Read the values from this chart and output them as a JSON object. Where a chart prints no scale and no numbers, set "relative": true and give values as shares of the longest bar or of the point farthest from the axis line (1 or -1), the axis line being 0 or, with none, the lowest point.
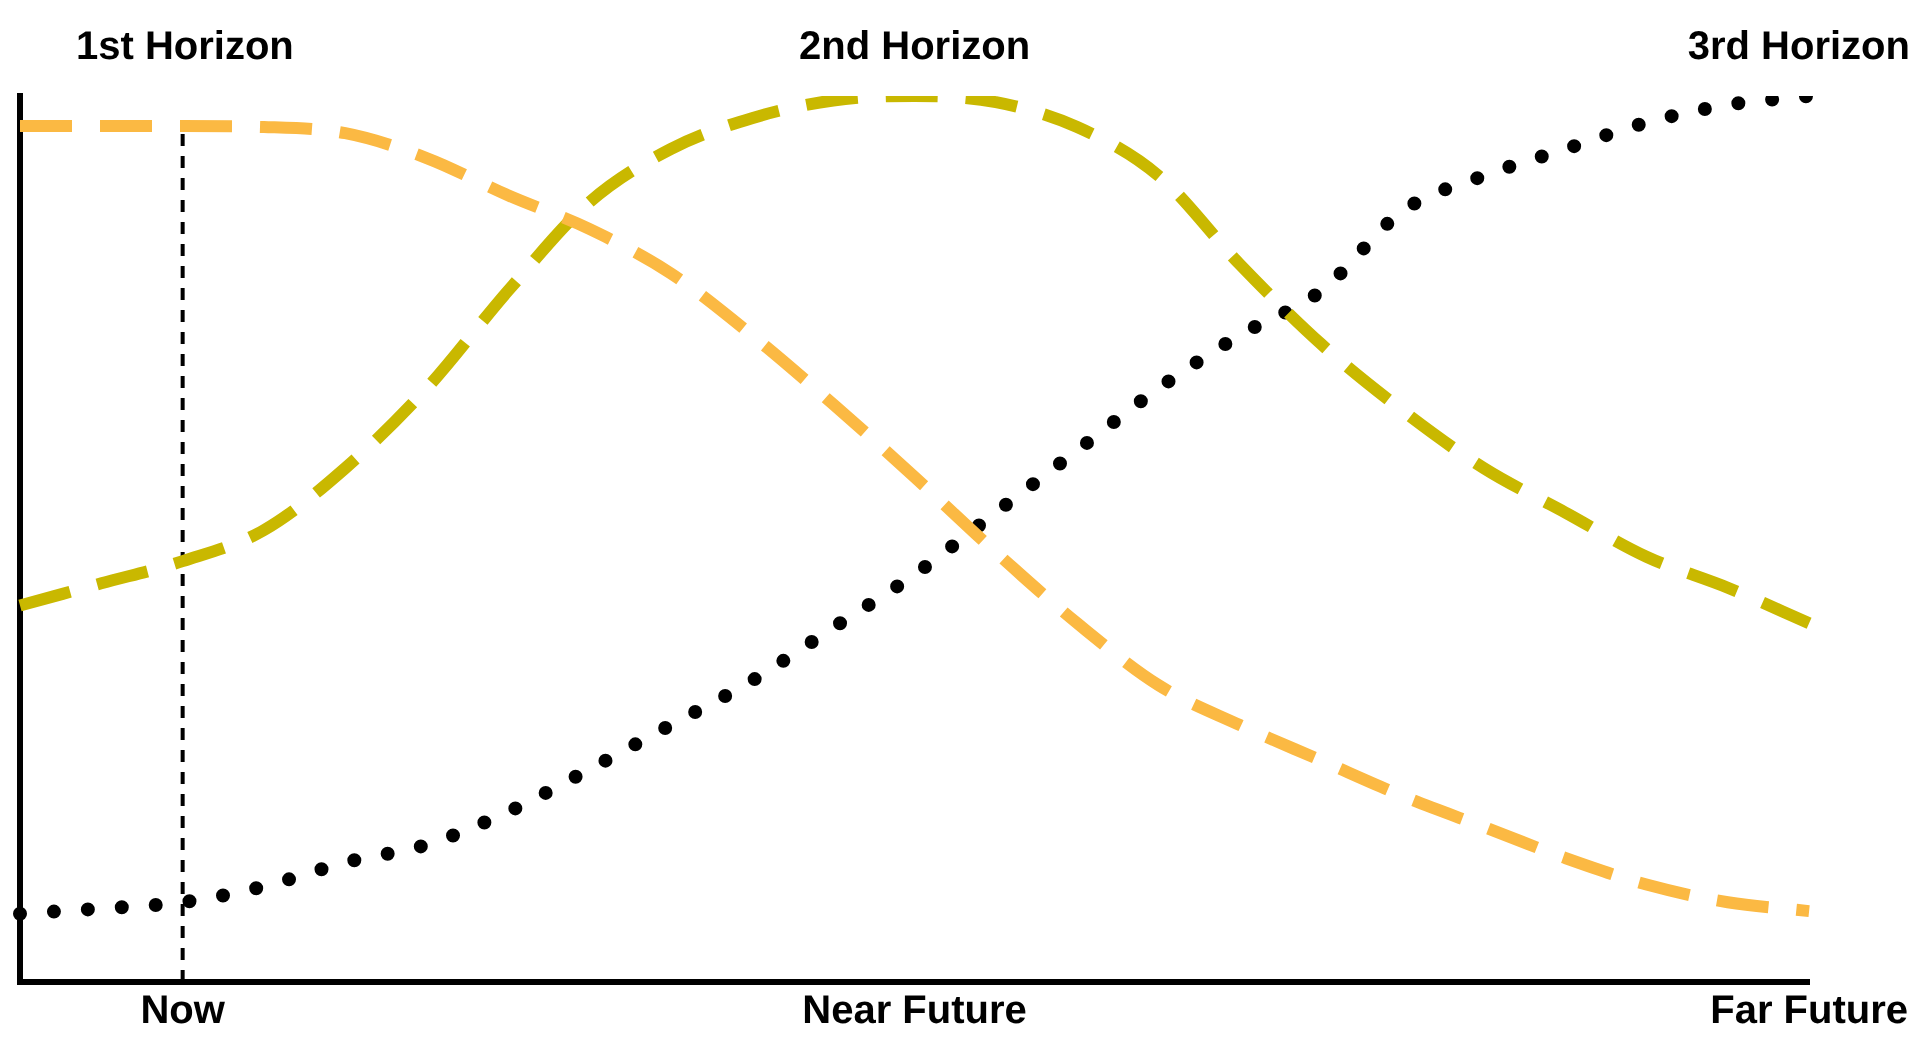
{
  "chart_data": {
    "type": "line",
    "relative": true,
    "categories": [
      null,
      null,
      "Now",
      null,
      null,
      null,
      null,
      null,
      null,
      null,
      null,
      "Near Future",
      null,
      null,
      null,
      null,
      null,
      null,
      null,
      null,
      null,
      null,
      "Far Future"
    ],
    "series": [
      {
        "name": "1st Horizon",
        "color": "#fbb943",
        "line_style": "dashed",
        "values": [
          0.966,
          0.966,
          0.966,
          0.965,
          0.958,
          0.93,
          0.888,
          0.85,
          0.8,
          0.73,
          0.652,
          0.57,
          0.485,
          0.405,
          0.335,
          0.29,
          0.25,
          0.21,
          0.175,
          0.14,
          0.11,
          0.09,
          0.08
        ]
      },
      {
        "name": "2nd Horizon",
        "color": "#c9b800",
        "line_style": "dashed",
        "values": [
          0.425,
          0.45,
          0.475,
          0.51,
          0.58,
          0.67,
          0.78,
          0.88,
          0.94,
          0.975,
          0.995,
          1,
          0.993,
          0.965,
          0.91,
          0.81,
          0.72,
          0.645,
          0.58,
          0.53,
          0.48,
          0.445,
          0.405
        ]
      },
      {
        "name": "3rd Horizon",
        "color": "#000000",
        "line_style": "dotted",
        "values": [
          0.077,
          0.083,
          0.09,
          0.108,
          0.135,
          0.155,
          0.192,
          0.24,
          0.29,
          0.34,
          0.4,
          0.46,
          0.53,
          0.6,
          0.67,
          0.73,
          0.78,
          0.87,
          0.91,
          0.94,
          0.97,
          0.99,
          1
        ]
      }
    ],
    "ref_lines": [
      {
        "axis": "x",
        "value": "Now",
        "color": "#000000",
        "line_style": "dashed"
      }
    ],
    "grid": false,
    "legend": false
  }
}
